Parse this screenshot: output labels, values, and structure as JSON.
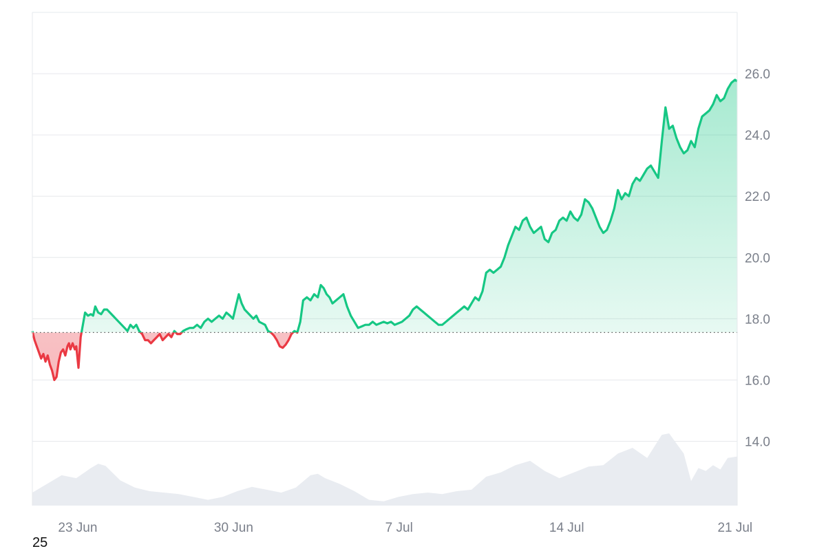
{
  "chart_data": {
    "type": "area",
    "baseline": 17.55,
    "ylim": [
      11.9,
      28.0
    ],
    "y_ticks": [
      14.0,
      16.0,
      18.0,
      20.0,
      22.0,
      24.0,
      26.0
    ],
    "x_ticks": [
      "23 Jun",
      "30 Jun",
      "7 Jul",
      "14 Jul",
      "21 Jul"
    ],
    "x_range": [
      "2024-06-21T14:00",
      "2024-07-21T20:00"
    ],
    "colors": {
      "up": "#16c784",
      "down": "#ea3943",
      "volume": "#e9ecf1",
      "grid": "#e6e8ec",
      "baseline": "#555555"
    },
    "series": [
      {
        "values": [
          [
            0,
            17.6
          ],
          [
            0.3,
            17.3
          ],
          [
            0.6,
            17.1
          ],
          [
            0.9,
            16.9
          ],
          [
            1.2,
            16.7
          ],
          [
            1.5,
            16.85
          ],
          [
            1.8,
            16.6
          ],
          [
            2.1,
            16.8
          ],
          [
            2.4,
            16.5
          ],
          [
            2.7,
            16.3
          ],
          [
            3.0,
            16.0
          ],
          [
            3.3,
            16.1
          ],
          [
            3.6,
            16.6
          ],
          [
            3.9,
            16.9
          ],
          [
            4.2,
            17.0
          ],
          [
            4.5,
            16.8
          ],
          [
            4.8,
            17.1
          ],
          [
            5.0,
            17.2
          ],
          [
            5.2,
            17.0
          ],
          [
            5.5,
            17.2
          ],
          [
            5.8,
            17.0
          ],
          [
            6.0,
            17.1
          ],
          [
            6.3,
            16.4
          ],
          [
            6.6,
            17.4
          ],
          [
            6.9,
            17.8
          ],
          [
            7.2,
            18.2
          ],
          [
            7.6,
            18.1
          ],
          [
            8.0,
            18.15
          ],
          [
            8.3,
            18.1
          ],
          [
            8.6,
            18.4
          ],
          [
            9.0,
            18.2
          ],
          [
            9.4,
            18.15
          ],
          [
            9.8,
            18.3
          ],
          [
            10.2,
            18.3
          ],
          [
            10.6,
            18.2
          ],
          [
            11.0,
            18.1
          ],
          [
            11.4,
            18.0
          ],
          [
            11.8,
            17.9
          ],
          [
            12.2,
            17.8
          ],
          [
            12.6,
            17.7
          ],
          [
            13.0,
            17.6
          ],
          [
            13.4,
            17.8
          ],
          [
            13.8,
            17.7
          ],
          [
            14.2,
            17.8
          ],
          [
            14.6,
            17.6
          ],
          [
            15.0,
            17.5
          ],
          [
            15.4,
            17.3
          ],
          [
            15.8,
            17.3
          ],
          [
            16.2,
            17.2
          ],
          [
            16.6,
            17.3
          ],
          [
            17.0,
            17.4
          ],
          [
            17.4,
            17.5
          ],
          [
            17.8,
            17.3
          ],
          [
            18.2,
            17.4
          ],
          [
            18.6,
            17.5
          ],
          [
            19.0,
            17.4
          ],
          [
            19.4,
            17.6
          ],
          [
            19.8,
            17.5
          ],
          [
            20.2,
            17.5
          ],
          [
            20.6,
            17.6
          ],
          [
            21.0,
            17.65
          ],
          [
            21.5,
            17.7
          ],
          [
            22.0,
            17.7
          ],
          [
            22.5,
            17.8
          ],
          [
            23.0,
            17.7
          ],
          [
            23.5,
            17.9
          ],
          [
            24.0,
            18.0
          ],
          [
            24.5,
            17.9
          ],
          [
            25.0,
            18.0
          ],
          [
            25.5,
            18.1
          ],
          [
            26.0,
            18.0
          ],
          [
            26.5,
            18.2
          ],
          [
            27.0,
            18.1
          ],
          [
            27.4,
            18.0
          ],
          [
            27.8,
            18.4
          ],
          [
            28.2,
            18.8
          ],
          [
            28.6,
            18.5
          ],
          [
            29.0,
            18.3
          ],
          [
            29.4,
            18.2
          ],
          [
            29.8,
            18.1
          ],
          [
            30.2,
            18.0
          ],
          [
            30.6,
            18.1
          ],
          [
            31.0,
            17.9
          ],
          [
            31.4,
            17.85
          ],
          [
            31.8,
            17.8
          ],
          [
            32.2,
            17.6
          ],
          [
            32.6,
            17.55
          ],
          [
            33.0,
            17.45
          ],
          [
            33.4,
            17.3
          ],
          [
            33.8,
            17.1
          ],
          [
            34.2,
            17.05
          ],
          [
            34.6,
            17.15
          ],
          [
            35.0,
            17.3
          ],
          [
            35.4,
            17.5
          ],
          [
            35.8,
            17.6
          ],
          [
            36.2,
            17.55
          ],
          [
            36.6,
            17.9
          ],
          [
            37.0,
            18.6
          ],
          [
            37.5,
            18.7
          ],
          [
            38.0,
            18.6
          ],
          [
            38.5,
            18.8
          ],
          [
            39.0,
            18.7
          ],
          [
            39.4,
            19.1
          ],
          [
            39.8,
            19.0
          ],
          [
            40.2,
            18.8
          ],
          [
            40.6,
            18.7
          ],
          [
            41.0,
            18.5
          ],
          [
            41.5,
            18.6
          ],
          [
            42.0,
            18.7
          ],
          [
            42.5,
            18.8
          ],
          [
            43.0,
            18.4
          ],
          [
            43.5,
            18.1
          ],
          [
            44.0,
            17.9
          ],
          [
            44.5,
            17.7
          ],
          [
            45.0,
            17.75
          ],
          [
            45.5,
            17.8
          ],
          [
            46.0,
            17.8
          ],
          [
            46.5,
            17.9
          ],
          [
            47.0,
            17.8
          ],
          [
            47.5,
            17.85
          ],
          [
            48.0,
            17.9
          ],
          [
            48.5,
            17.85
          ],
          [
            49.0,
            17.9
          ],
          [
            49.5,
            17.8
          ],
          [
            50.0,
            17.85
          ],
          [
            50.5,
            17.9
          ],
          [
            51.0,
            18.0
          ],
          [
            51.5,
            18.1
          ],
          [
            52.0,
            18.3
          ],
          [
            52.5,
            18.4
          ],
          [
            53.0,
            18.3
          ],
          [
            53.5,
            18.2
          ],
          [
            54.0,
            18.1
          ],
          [
            54.5,
            18.0
          ],
          [
            55.0,
            17.9
          ],
          [
            55.5,
            17.8
          ],
          [
            56.0,
            17.8
          ],
          [
            56.5,
            17.9
          ],
          [
            57.0,
            18.0
          ],
          [
            57.5,
            18.1
          ],
          [
            58.0,
            18.2
          ],
          [
            58.5,
            18.3
          ],
          [
            59.0,
            18.4
          ],
          [
            59.5,
            18.3
          ],
          [
            60.0,
            18.5
          ],
          [
            60.5,
            18.7
          ],
          [
            61.0,
            18.6
          ],
          [
            61.5,
            18.9
          ],
          [
            62.0,
            19.5
          ],
          [
            62.5,
            19.6
          ],
          [
            63.0,
            19.5
          ],
          [
            63.5,
            19.6
          ],
          [
            64.0,
            19.7
          ],
          [
            64.5,
            20.0
          ],
          [
            65.0,
            20.4
          ],
          [
            65.5,
            20.7
          ],
          [
            66.0,
            21.0
          ],
          [
            66.5,
            20.9
          ],
          [
            67.0,
            21.2
          ],
          [
            67.5,
            21.3
          ],
          [
            68.0,
            21.0
          ],
          [
            68.5,
            20.8
          ],
          [
            69.0,
            20.9
          ],
          [
            69.5,
            21.0
          ],
          [
            70.0,
            20.6
          ],
          [
            70.5,
            20.5
          ],
          [
            71.0,
            20.8
          ],
          [
            71.5,
            20.9
          ],
          [
            72.0,
            21.2
          ],
          [
            72.5,
            21.3
          ],
          [
            73.0,
            21.2
          ],
          [
            73.5,
            21.5
          ],
          [
            74.0,
            21.3
          ],
          [
            74.5,
            21.2
          ],
          [
            75.0,
            21.4
          ],
          [
            75.5,
            21.9
          ],
          [
            76.0,
            21.8
          ],
          [
            76.5,
            21.6
          ],
          [
            77.0,
            21.3
          ],
          [
            77.5,
            21.0
          ],
          [
            78.0,
            20.8
          ],
          [
            78.5,
            20.9
          ],
          [
            79.0,
            21.2
          ],
          [
            79.5,
            21.6
          ],
          [
            80.0,
            22.2
          ],
          [
            80.5,
            21.9
          ],
          [
            81.0,
            22.1
          ],
          [
            81.5,
            22.0
          ],
          [
            82.0,
            22.4
          ],
          [
            82.5,
            22.6
          ],
          [
            83.0,
            22.5
          ],
          [
            83.5,
            22.7
          ],
          [
            84.0,
            22.9
          ],
          [
            84.5,
            23.0
          ],
          [
            85.0,
            22.8
          ],
          [
            85.5,
            22.6
          ],
          [
            86.0,
            23.8
          ],
          [
            86.5,
            24.9
          ],
          [
            87.0,
            24.2
          ],
          [
            87.5,
            24.3
          ],
          [
            88.0,
            23.9
          ],
          [
            88.5,
            23.6
          ],
          [
            89.0,
            23.4
          ],
          [
            89.5,
            23.5
          ],
          [
            90.0,
            23.8
          ],
          [
            90.5,
            23.6
          ],
          [
            91.0,
            24.2
          ],
          [
            91.5,
            24.6
          ],
          [
            92.0,
            24.7
          ],
          [
            92.5,
            24.8
          ],
          [
            93.0,
            25.0
          ],
          [
            93.5,
            25.3
          ],
          [
            94.0,
            25.1
          ],
          [
            94.5,
            25.2
          ],
          [
            95.0,
            25.5
          ],
          [
            95.5,
            25.7
          ],
          [
            96.0,
            25.8
          ],
          [
            96.3,
            25.75
          ]
        ],
        "volume": [
          [
            0,
            0.18
          ],
          [
            2,
            0.3
          ],
          [
            4,
            0.42
          ],
          [
            6,
            0.38
          ],
          [
            8,
            0.52
          ],
          [
            9,
            0.58
          ],
          [
            10,
            0.55
          ],
          [
            12,
            0.35
          ],
          [
            14,
            0.25
          ],
          [
            16,
            0.2
          ],
          [
            18,
            0.18
          ],
          [
            20,
            0.16
          ],
          [
            22,
            0.12
          ],
          [
            24,
            0.08
          ],
          [
            26,
            0.12
          ],
          [
            28,
            0.2
          ],
          [
            30,
            0.26
          ],
          [
            32,
            0.22
          ],
          [
            34,
            0.18
          ],
          [
            36,
            0.25
          ],
          [
            38,
            0.42
          ],
          [
            39,
            0.44
          ],
          [
            40,
            0.38
          ],
          [
            42,
            0.3
          ],
          [
            44,
            0.2
          ],
          [
            46,
            0.08
          ],
          [
            48,
            0.06
          ],
          [
            50,
            0.12
          ],
          [
            52,
            0.16
          ],
          [
            54,
            0.18
          ],
          [
            56,
            0.16
          ],
          [
            58,
            0.2
          ],
          [
            60,
            0.22
          ],
          [
            62,
            0.4
          ],
          [
            64,
            0.46
          ],
          [
            66,
            0.56
          ],
          [
            68,
            0.62
          ],
          [
            70,
            0.48
          ],
          [
            72,
            0.38
          ],
          [
            74,
            0.46
          ],
          [
            76,
            0.54
          ],
          [
            78,
            0.56
          ],
          [
            80,
            0.72
          ],
          [
            82,
            0.8
          ],
          [
            84,
            0.66
          ],
          [
            86,
            0.98
          ],
          [
            87,
            1.0
          ],
          [
            88,
            0.86
          ],
          [
            89,
            0.72
          ],
          [
            90,
            0.34
          ],
          [
            91,
            0.52
          ],
          [
            92,
            0.48
          ],
          [
            93,
            0.56
          ],
          [
            94,
            0.5
          ],
          [
            95,
            0.66
          ],
          [
            96.3,
            0.68
          ]
        ]
      }
    ]
  },
  "footer": {
    "text": "25"
  }
}
